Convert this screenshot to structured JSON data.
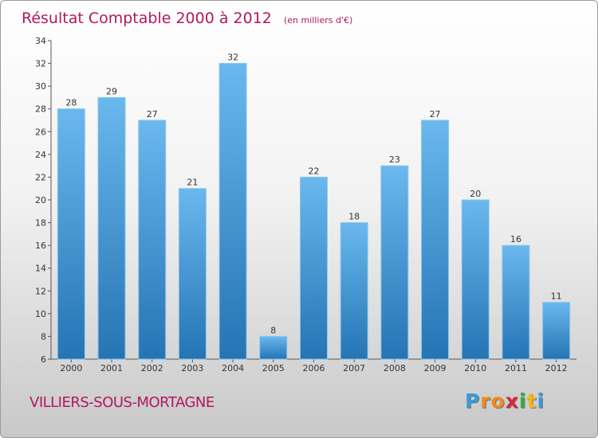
{
  "chart_data": {
    "type": "bar",
    "title": "Résultat Comptable 2000 à 2012",
    "subtitle": "(en milliers d'€)",
    "categories": [
      "2000",
      "2001",
      "2002",
      "2003",
      "2004",
      "2005",
      "2006",
      "2007",
      "2008",
      "2009",
      "2010",
      "2011",
      "2012"
    ],
    "values": [
      28,
      29,
      27,
      21,
      32,
      8,
      22,
      18,
      23,
      27,
      20,
      16,
      11
    ],
    "xlabel": "",
    "ylabel": "",
    "ylim": [
      6,
      34
    ],
    "yticks": [
      6,
      8,
      10,
      12,
      14,
      16,
      18,
      20,
      22,
      24,
      26,
      28,
      30,
      32,
      34
    ],
    "grid": false,
    "legend": "none"
  },
  "footer": {
    "commune": "VILLIERS-SOUS-MORTAGNE",
    "logo_letters": [
      "P",
      "r",
      "o",
      "x",
      "i",
      "t",
      "i"
    ]
  },
  "colors": {
    "title": "#b0195e",
    "bar_top": "#6ab8ee",
    "bar_bottom": "#2574b4",
    "axis": "#555555",
    "logo": [
      "#3a9ad9",
      "#f08a1c",
      "#f08a1c",
      "#d9263a",
      "#3aa93a",
      "#f0b81c",
      "#3a9ad9"
    ]
  }
}
